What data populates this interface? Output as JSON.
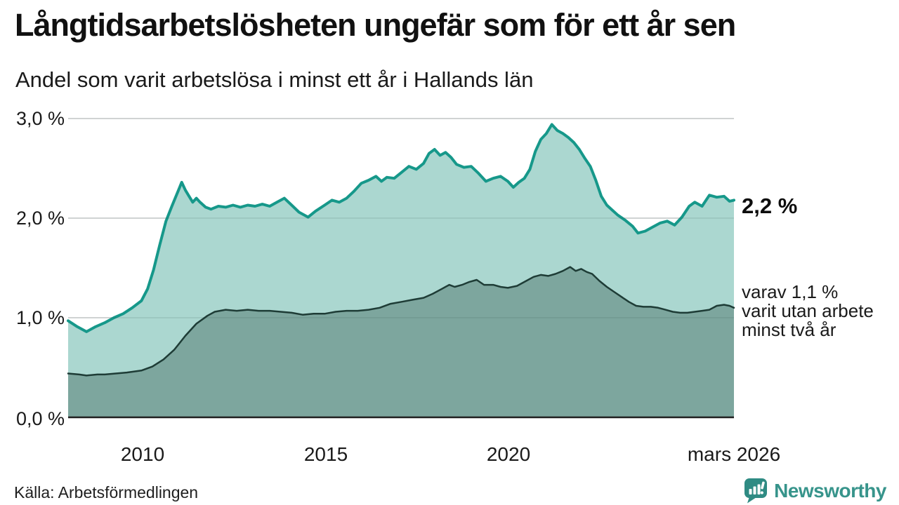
{
  "chart_data": {
    "type": "area",
    "title": "Långtidsarbetslösheten ungefär som för ett år sen",
    "subtitle": "Andel som varit arbetslösa i minst ett år i Hallands län",
    "xlim": [
      2008.0,
      2026.17
    ],
    "ylim": [
      0,
      3
    ],
    "grid": "horizontal",
    "legend_position": "none",
    "yticks": [
      {
        "value": 3,
        "label": "3,0 %"
      },
      {
        "value": 2,
        "label": "2,0 %"
      },
      {
        "value": 1,
        "label": "1,0 %"
      },
      {
        "value": 0,
        "label": "0,0 %"
      }
    ],
    "xticks": [
      {
        "value": 2010,
        "label": "2010"
      },
      {
        "value": 2015,
        "label": "2015"
      },
      {
        "value": 2020,
        "label": "2020"
      },
      {
        "value": 2026.17,
        "label": "mars 2026"
      }
    ],
    "series": [
      {
        "id": "unemployed-at-least-one-year",
        "color": "#16988a",
        "fill": "#abd7d0",
        "x": [
          2008.0,
          2008.25,
          2008.5,
          2008.75,
          2009.0,
          2009.25,
          2009.5,
          2009.75,
          2010.0,
          2010.17,
          2010.33,
          2010.5,
          2010.67,
          2010.83,
          2011.0,
          2011.1,
          2011.2,
          2011.3,
          2011.4,
          2011.5,
          2011.6,
          2011.75,
          2011.9,
          2012.1,
          2012.3,
          2012.5,
          2012.7,
          2012.9,
          2013.1,
          2013.3,
          2013.5,
          2013.7,
          2013.9,
          2014.1,
          2014.3,
          2014.55,
          2014.75,
          2015.0,
          2015.2,
          2015.4,
          2015.6,
          2015.8,
          2016.0,
          2016.2,
          2016.4,
          2016.55,
          2016.7,
          2016.9,
          2017.1,
          2017.3,
          2017.5,
          2017.7,
          2017.85,
          2018.0,
          2018.15,
          2018.3,
          2018.45,
          2018.6,
          2018.8,
          2019.0,
          2019.2,
          2019.4,
          2019.6,
          2019.8,
          2020.0,
          2020.15,
          2020.3,
          2020.45,
          2020.6,
          2020.75,
          2020.9,
          2021.05,
          2021.2,
          2021.35,
          2021.5,
          2021.65,
          2021.8,
          2021.95,
          2022.1,
          2022.25,
          2022.4,
          2022.55,
          2022.7,
          2022.85,
          2023.0,
          2023.2,
          2023.4,
          2023.55,
          2023.75,
          2023.95,
          2024.15,
          2024.35,
          2024.55,
          2024.75,
          2024.95,
          2025.1,
          2025.3,
          2025.5,
          2025.7,
          2025.9,
          2026.05,
          2026.17
        ],
        "values": [
          0.97,
          0.91,
          0.86,
          0.91,
          0.95,
          1.0,
          1.04,
          1.1,
          1.17,
          1.29,
          1.48,
          1.73,
          1.97,
          2.12,
          2.27,
          2.36,
          2.28,
          2.22,
          2.16,
          2.2,
          2.16,
          2.11,
          2.09,
          2.12,
          2.11,
          2.13,
          2.11,
          2.13,
          2.12,
          2.14,
          2.12,
          2.16,
          2.2,
          2.13,
          2.06,
          2.01,
          2.07,
          2.13,
          2.18,
          2.16,
          2.2,
          2.27,
          2.35,
          2.38,
          2.42,
          2.37,
          2.41,
          2.4,
          2.46,
          2.52,
          2.49,
          2.55,
          2.65,
          2.69,
          2.63,
          2.66,
          2.61,
          2.54,
          2.51,
          2.52,
          2.45,
          2.37,
          2.4,
          2.42,
          2.37,
          2.31,
          2.36,
          2.4,
          2.49,
          2.67,
          2.79,
          2.85,
          2.94,
          2.88,
          2.85,
          2.81,
          2.76,
          2.69,
          2.6,
          2.52,
          2.38,
          2.22,
          2.13,
          2.08,
          2.03,
          1.98,
          1.92,
          1.85,
          1.87,
          1.91,
          1.95,
          1.97,
          1.93,
          2.01,
          2.12,
          2.16,
          2.12,
          2.23,
          2.21,
          2.22,
          2.17,
          2.18
        ]
      },
      {
        "id": "unemployed-at-least-two-years",
        "color": "#1e3c36",
        "fill": "#7da69e",
        "x": [
          2008.0,
          2008.3,
          2008.5,
          2008.8,
          2009.0,
          2009.3,
          2009.6,
          2010.0,
          2010.3,
          2010.6,
          2010.9,
          2011.2,
          2011.5,
          2011.8,
          2012.0,
          2012.3,
          2012.6,
          2012.9,
          2013.2,
          2013.5,
          2013.8,
          2014.1,
          2014.4,
          2014.7,
          2015.0,
          2015.3,
          2015.6,
          2015.9,
          2016.2,
          2016.5,
          2016.8,
          2017.1,
          2017.4,
          2017.7,
          2017.95,
          2018.2,
          2018.4,
          2018.55,
          2018.75,
          2018.95,
          2019.15,
          2019.35,
          2019.6,
          2019.8,
          2020.0,
          2020.25,
          2020.5,
          2020.7,
          2020.9,
          2021.1,
          2021.3,
          2021.5,
          2021.7,
          2021.85,
          2022.0,
          2022.15,
          2022.3,
          2022.5,
          2022.7,
          2022.9,
          2023.1,
          2023.3,
          2023.5,
          2023.7,
          2023.9,
          2024.1,
          2024.3,
          2024.5,
          2024.7,
          2024.9,
          2025.1,
          2025.3,
          2025.5,
          2025.7,
          2025.9,
          2026.05,
          2026.17
        ],
        "values": [
          0.44,
          0.43,
          0.42,
          0.43,
          0.43,
          0.44,
          0.45,
          0.47,
          0.51,
          0.58,
          0.68,
          0.82,
          0.94,
          1.02,
          1.06,
          1.08,
          1.07,
          1.08,
          1.07,
          1.07,
          1.06,
          1.05,
          1.03,
          1.04,
          1.04,
          1.06,
          1.07,
          1.07,
          1.08,
          1.1,
          1.14,
          1.16,
          1.18,
          1.2,
          1.24,
          1.29,
          1.33,
          1.31,
          1.33,
          1.36,
          1.38,
          1.33,
          1.33,
          1.31,
          1.3,
          1.32,
          1.37,
          1.41,
          1.43,
          1.42,
          1.44,
          1.47,
          1.51,
          1.47,
          1.49,
          1.46,
          1.44,
          1.37,
          1.31,
          1.26,
          1.21,
          1.16,
          1.12,
          1.11,
          1.11,
          1.1,
          1.08,
          1.06,
          1.05,
          1.05,
          1.06,
          1.07,
          1.08,
          1.12,
          1.13,
          1.12,
          1.1
        ]
      }
    ],
    "annotations": {
      "latest_total": "2,2 %",
      "detail_line1": "varav 1,1 %",
      "detail_line2": "varit utan arbete",
      "detail_line3": "minst två år"
    }
  },
  "footer": {
    "source": "Källa: Arbetsförmedlingen",
    "brand": "Newsworthy"
  },
  "colors": {
    "line_total": "#16988a",
    "fill_total": "#abd7d0",
    "line_two_years": "#1e3c36",
    "fill_two_years": "#7da69e",
    "gridline": "#e4e4e4",
    "axis": "#202020",
    "brand": "#37948b"
  }
}
